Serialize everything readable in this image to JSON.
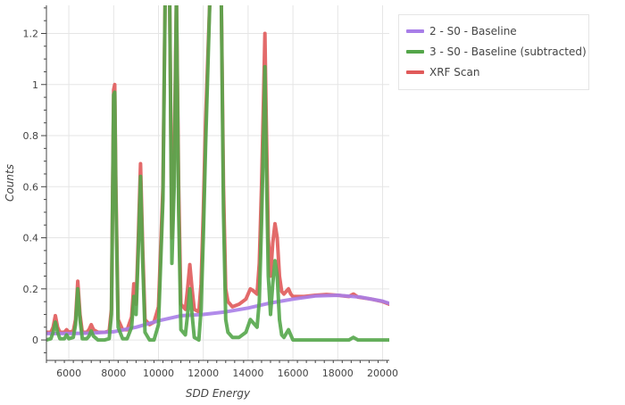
{
  "chart_data": {
    "type": "line",
    "title": "",
    "xlabel": "SDD Energy",
    "ylabel": "Counts",
    "xlim": [
      5000,
      20300
    ],
    "ylim": [
      -0.08,
      1.31
    ],
    "x_ticks": [
      6000,
      8000,
      10000,
      12000,
      14000,
      16000,
      18000,
      20000
    ],
    "y_ticks": [
      0,
      0.2,
      0.4,
      0.6,
      0.8,
      1,
      1.2
    ],
    "x_tick_labels": [
      "6000",
      "8000",
      "10000",
      "12000",
      "14000",
      "16000",
      "18000",
      "20000"
    ],
    "y_tick_labels": [
      "0",
      "0.2",
      "0.4",
      "0.6",
      "0.8",
      "1",
      "1.2"
    ],
    "grid": true,
    "legend_position": "right",
    "series": [
      {
        "name": "XRF Scan",
        "color": "#e05a5a",
        "points": [
          [
            5000,
            0.03
          ],
          [
            5200,
            0.03
          ],
          [
            5300,
            0.05
          ],
          [
            5400,
            0.095
          ],
          [
            5500,
            0.05
          ],
          [
            5600,
            0.03
          ],
          [
            5800,
            0.03
          ],
          [
            5900,
            0.04
          ],
          [
            6000,
            0.03
          ],
          [
            6200,
            0.035
          ],
          [
            6300,
            0.08
          ],
          [
            6400,
            0.23
          ],
          [
            6500,
            0.1
          ],
          [
            6600,
            0.03
          ],
          [
            6800,
            0.03
          ],
          [
            6900,
            0.04
          ],
          [
            7000,
            0.06
          ],
          [
            7100,
            0.04
          ],
          [
            7300,
            0.03
          ],
          [
            7600,
            0.03
          ],
          [
            7800,
            0.035
          ],
          [
            7900,
            0.12
          ],
          [
            8000,
            0.98
          ],
          [
            8050,
            1.0
          ],
          [
            8100,
            0.6
          ],
          [
            8200,
            0.08
          ],
          [
            8400,
            0.04
          ],
          [
            8600,
            0.04
          ],
          [
            8800,
            0.09
          ],
          [
            8900,
            0.22
          ],
          [
            9000,
            0.14
          ],
          [
            9100,
            0.4
          ],
          [
            9200,
            0.69
          ],
          [
            9300,
            0.35
          ],
          [
            9400,
            0.08
          ],
          [
            9600,
            0.06
          ],
          [
            9800,
            0.07
          ],
          [
            10000,
            0.13
          ],
          [
            10200,
            0.6
          ],
          [
            10300,
            1.35
          ],
          [
            10500,
            1.35
          ],
          [
            10600,
            0.4
          ],
          [
            10700,
            0.7
          ],
          [
            10800,
            1.35
          ],
          [
            10900,
            0.6
          ],
          [
            11000,
            0.14
          ],
          [
            11200,
            0.12
          ],
          [
            11300,
            0.2
          ],
          [
            11400,
            0.295
          ],
          [
            11500,
            0.2
          ],
          [
            11600,
            0.12
          ],
          [
            11800,
            0.11
          ],
          [
            11900,
            0.22
          ],
          [
            12000,
            0.5
          ],
          [
            12100,
            0.85
          ],
          [
            12300,
            1.35
          ],
          [
            12500,
            1.35
          ],
          [
            12600,
            1.35
          ],
          [
            12800,
            1.35
          ],
          [
            12900,
            0.6
          ],
          [
            13000,
            0.2
          ],
          [
            13100,
            0.15
          ],
          [
            13300,
            0.13
          ],
          [
            13600,
            0.14
          ],
          [
            13900,
            0.16
          ],
          [
            14100,
            0.2
          ],
          [
            14200,
            0.195
          ],
          [
            14400,
            0.18
          ],
          [
            14500,
            0.3
          ],
          [
            14600,
            0.6
          ],
          [
            14700,
            1.0
          ],
          [
            14750,
            1.2
          ],
          [
            14800,
            0.9
          ],
          [
            14900,
            0.4
          ],
          [
            15000,
            0.25
          ],
          [
            15100,
            0.38
          ],
          [
            15200,
            0.455
          ],
          [
            15300,
            0.4
          ],
          [
            15400,
            0.25
          ],
          [
            15500,
            0.19
          ],
          [
            15600,
            0.18
          ],
          [
            15800,
            0.2
          ],
          [
            15900,
            0.18
          ],
          [
            16000,
            0.17
          ],
          [
            16500,
            0.17
          ],
          [
            17000,
            0.175
          ],
          [
            17500,
            0.178
          ],
          [
            18000,
            0.175
          ],
          [
            18500,
            0.17
          ],
          [
            18700,
            0.18
          ],
          [
            18900,
            0.168
          ],
          [
            19500,
            0.16
          ],
          [
            20000,
            0.15
          ],
          [
            20300,
            0.14
          ]
        ]
      },
      {
        "name": "2 - S0 - Baseline",
        "color": "#a87ee8",
        "points": [
          [
            5000,
            0.025
          ],
          [
            6000,
            0.025
          ],
          [
            7000,
            0.027
          ],
          [
            8000,
            0.032
          ],
          [
            9000,
            0.05
          ],
          [
            10000,
            0.075
          ],
          [
            11000,
            0.095
          ],
          [
            12000,
            0.1
          ],
          [
            13000,
            0.11
          ],
          [
            14000,
            0.125
          ],
          [
            15000,
            0.145
          ],
          [
            16000,
            0.16
          ],
          [
            17000,
            0.172
          ],
          [
            18000,
            0.175
          ],
          [
            19000,
            0.168
          ],
          [
            20000,
            0.152
          ],
          [
            20300,
            0.143
          ]
        ]
      },
      {
        "name": "3 - S0 - Baseline (subtracted)",
        "color": "#54a64a",
        "points": [
          [
            5000,
            0.0
          ],
          [
            5200,
            0.005
          ],
          [
            5300,
            0.03
          ],
          [
            5400,
            0.07
          ],
          [
            5500,
            0.03
          ],
          [
            5600,
            0.005
          ],
          [
            5800,
            0.005
          ],
          [
            5900,
            0.02
          ],
          [
            6000,
            0.005
          ],
          [
            6200,
            0.01
          ],
          [
            6300,
            0.06
          ],
          [
            6400,
            0.2
          ],
          [
            6500,
            0.08
          ],
          [
            6600,
            0.005
          ],
          [
            6800,
            0.005
          ],
          [
            6900,
            0.015
          ],
          [
            7000,
            0.035
          ],
          [
            7100,
            0.015
          ],
          [
            7300,
            0.0
          ],
          [
            7600,
            0.0
          ],
          [
            7800,
            0.005
          ],
          [
            7900,
            0.1
          ],
          [
            8000,
            0.96
          ],
          [
            8050,
            0.97
          ],
          [
            8100,
            0.55
          ],
          [
            8200,
            0.05
          ],
          [
            8400,
            0.005
          ],
          [
            8600,
            0.005
          ],
          [
            8800,
            0.05
          ],
          [
            8900,
            0.17
          ],
          [
            9000,
            0.1
          ],
          [
            9100,
            0.35
          ],
          [
            9200,
            0.64
          ],
          [
            9300,
            0.3
          ],
          [
            9400,
            0.03
          ],
          [
            9600,
            0.0
          ],
          [
            9800,
            0.0
          ],
          [
            10000,
            0.06
          ],
          [
            10200,
            0.55
          ],
          [
            10300,
            1.35
          ],
          [
            10500,
            1.35
          ],
          [
            10600,
            0.3
          ],
          [
            10700,
            0.6
          ],
          [
            10800,
            1.35
          ],
          [
            10900,
            0.5
          ],
          [
            11000,
            0.04
          ],
          [
            11200,
            0.02
          ],
          [
            11300,
            0.1
          ],
          [
            11400,
            0.2
          ],
          [
            11500,
            0.1
          ],
          [
            11600,
            0.01
          ],
          [
            11800,
            0.0
          ],
          [
            11900,
            0.12
          ],
          [
            12000,
            0.4
          ],
          [
            12100,
            0.75
          ],
          [
            12300,
            1.35
          ],
          [
            12500,
            1.35
          ],
          [
            12600,
            1.35
          ],
          [
            12800,
            1.35
          ],
          [
            12900,
            0.5
          ],
          [
            13000,
            0.08
          ],
          [
            13100,
            0.03
          ],
          [
            13300,
            0.01
          ],
          [
            13600,
            0.01
          ],
          [
            13900,
            0.03
          ],
          [
            14100,
            0.08
          ],
          [
            14200,
            0.07
          ],
          [
            14400,
            0.05
          ],
          [
            14500,
            0.15
          ],
          [
            14600,
            0.45
          ],
          [
            14700,
            0.85
          ],
          [
            14750,
            1.07
          ],
          [
            14800,
            0.75
          ],
          [
            14900,
            0.25
          ],
          [
            15000,
            0.1
          ],
          [
            15100,
            0.22
          ],
          [
            15200,
            0.31
          ],
          [
            15300,
            0.25
          ],
          [
            15400,
            0.08
          ],
          [
            15500,
            0.02
          ],
          [
            15600,
            0.01
          ],
          [
            15800,
            0.04
          ],
          [
            15900,
            0.02
          ],
          [
            16000,
            0.0
          ],
          [
            16500,
            0.0
          ],
          [
            17000,
            0.0
          ],
          [
            17500,
            0.0
          ],
          [
            18000,
            0.0
          ],
          [
            18500,
            0.0
          ],
          [
            18700,
            0.01
          ],
          [
            18900,
            0.0
          ],
          [
            19500,
            0.0
          ],
          [
            20000,
            0.0
          ],
          [
            20300,
            0.0
          ]
        ]
      }
    ],
    "legend_order": [
      "2 - S0 - Baseline",
      "3 - S0 - Baseline (subtracted)",
      "XRF Scan"
    ]
  }
}
